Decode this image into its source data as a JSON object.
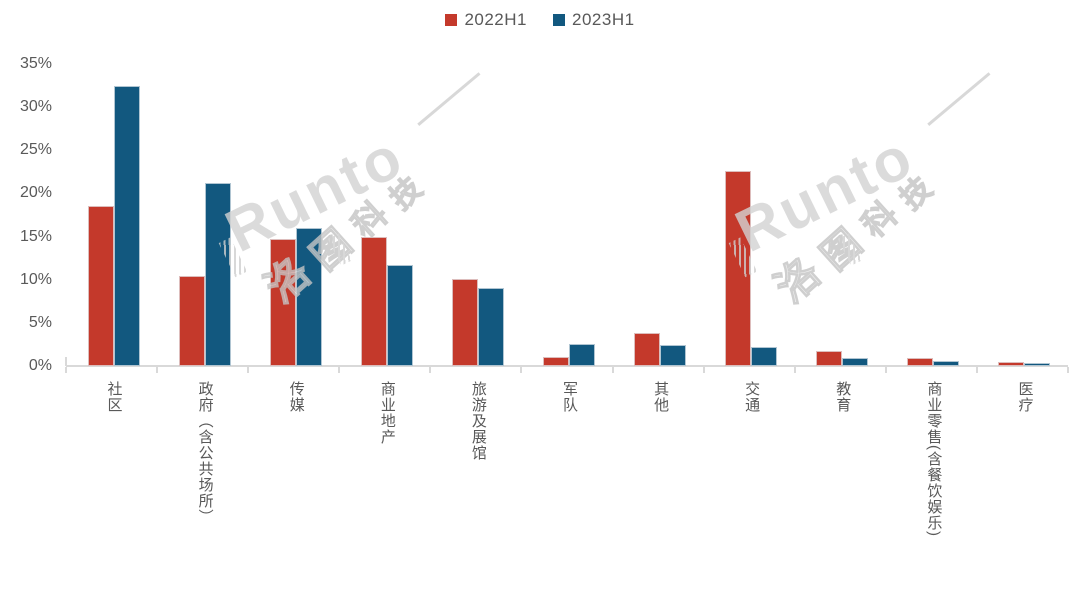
{
  "legend": {
    "items": [
      {
        "label": "2022H1",
        "color": "#c4392b"
      },
      {
        "label": "2023H1",
        "color": "#12587f"
      }
    ]
  },
  "y_axis": {
    "tick_labels": [
      "0%",
      "5%",
      "10%",
      "15%",
      "20%",
      "25%",
      "30%",
      "35%"
    ],
    "tick_values": [
      0,
      5,
      10,
      15,
      20,
      25,
      30,
      35
    ]
  },
  "chart_data": {
    "type": "bar",
    "categories": [
      "社区",
      "政府（含公共场所）",
      "传媒",
      "商业地产",
      "旅游及展馆",
      "军队",
      "其他",
      "交通",
      "教育",
      "商业零售(含餐饮娱乐)",
      "医疗"
    ],
    "series": [
      {
        "name": "2022H1",
        "color": "#c4392b",
        "values": [
          18.6,
          10.4,
          14.7,
          14.9,
          10.1,
          1.0,
          3.8,
          22.6,
          1.7,
          0.9,
          0.5
        ]
      },
      {
        "name": "2023H1",
        "color": "#12587f",
        "values": [
          32.5,
          21.2,
          16.0,
          11.7,
          9.0,
          2.5,
          2.4,
          2.2,
          0.9,
          0.6,
          0.3
        ]
      }
    ],
    "title": "",
    "xlabel": "",
    "ylabel": "",
    "ylim": [
      0,
      35
    ],
    "y_tick_step": 5,
    "value_unit": "%",
    "grid": false,
    "legend_position": "top-center",
    "bar_label_orientation": "vertical"
  },
  "watermark": {
    "brand": "Runto",
    "chars": [
      "洛",
      "图",
      "科",
      "技"
    ]
  },
  "colors": {
    "bar_2022": "#c4392b",
    "bar_2023": "#12587f",
    "axis": "#d9d9d9",
    "label_text": "#595959",
    "watermark": "#d3d3d3",
    "background": "#ffffff"
  }
}
